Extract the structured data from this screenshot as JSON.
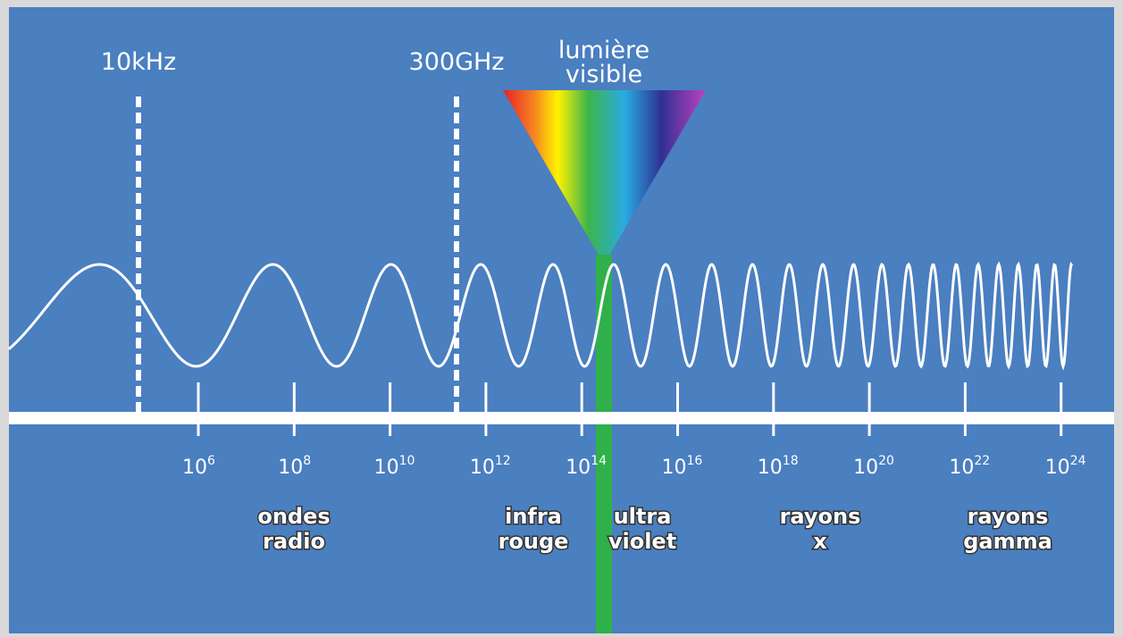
{
  "markers": [
    {
      "label": "10kHz"
    },
    {
      "label": "300GHz"
    }
  ],
  "visible_light": {
    "lines": [
      "lumière",
      "visible"
    ]
  },
  "frequency_ticks": [
    {
      "base": "10",
      "exponent": "6"
    },
    {
      "base": "10",
      "exponent": "8"
    },
    {
      "base": "10",
      "exponent": "10"
    },
    {
      "base": "10",
      "exponent": "12"
    },
    {
      "base": "10",
      "exponent": "14"
    },
    {
      "base": "10",
      "exponent": "16"
    },
    {
      "base": "10",
      "exponent": "18"
    },
    {
      "base": "10",
      "exponent": "20"
    },
    {
      "base": "10",
      "exponent": "22"
    },
    {
      "base": "10",
      "exponent": "24"
    }
  ],
  "bands": [
    {
      "lines": [
        "ondes",
        "radio"
      ]
    },
    {
      "lines": [
        "infra",
        "rouge"
      ]
    },
    {
      "lines": [
        "ultra",
        "violet"
      ]
    },
    {
      "lines": [
        "rayons",
        "x"
      ]
    },
    {
      "lines": [
        "rayons",
        "gamma"
      ]
    }
  ]
}
